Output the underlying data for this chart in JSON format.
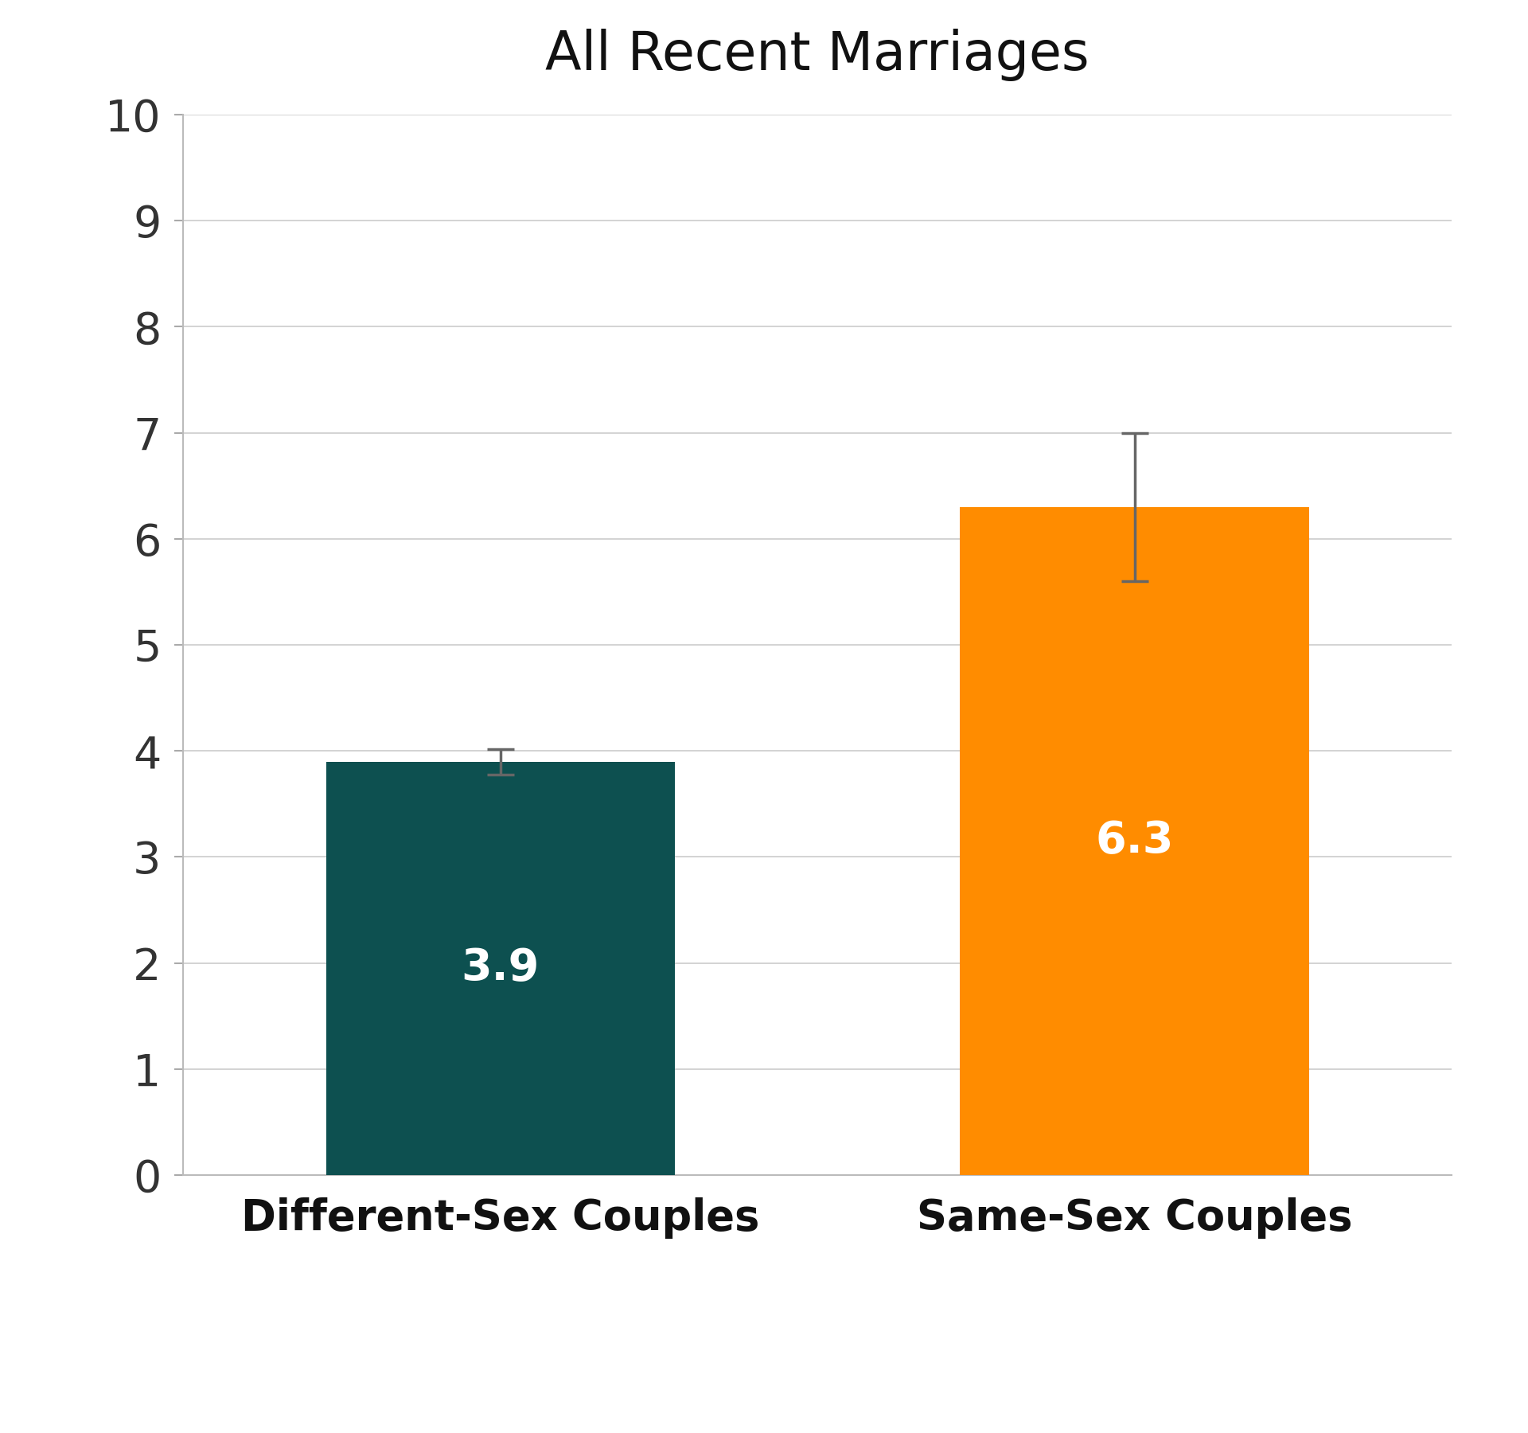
{
  "title": "All Recent Marriages",
  "categories": [
    "Different-Sex Couples",
    "Same-Sex Couples"
  ],
  "values": [
    3.9,
    6.3
  ],
  "errors": [
    0.12,
    0.7
  ],
  "bar_colors": [
    "#0d5050",
    "#ff8c00"
  ],
  "value_labels": [
    "3.9",
    "6.3"
  ],
  "value_label_color_0": "white",
  "value_label_color_1": "white",
  "value_label_fontsize": 40,
  "ylim": [
    0,
    10
  ],
  "yticks": [
    0,
    1,
    2,
    3,
    4,
    5,
    6,
    7,
    8,
    9,
    10
  ],
  "title_fontsize": 48,
  "tick_fontsize": 40,
  "xlabel_fontsize": 38,
  "background_color": "#ffffff",
  "bar_width": 0.55,
  "error_color": "#666666",
  "error_linewidth": 2.5,
  "error_capsize": 12,
  "grid_color": "#cccccc",
  "grid_linewidth": 1.2,
  "axis_color": "#bbbbbb",
  "tick_color": "#aaaaaa"
}
